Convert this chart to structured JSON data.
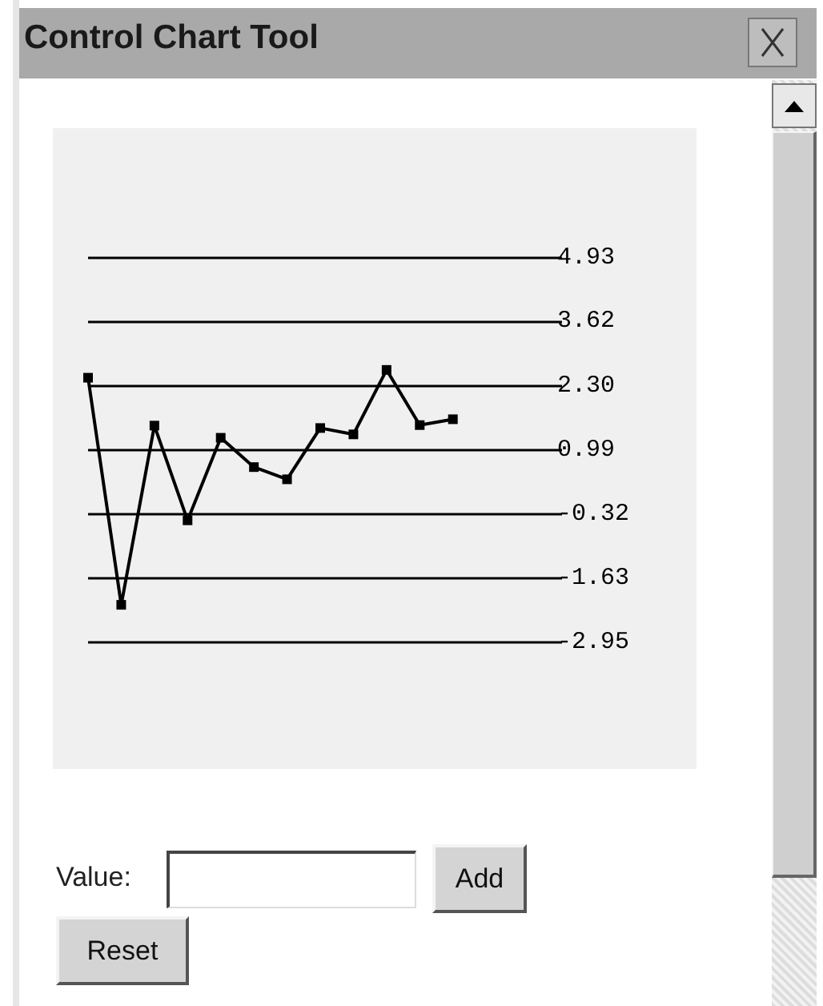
{
  "chart_data": {
    "type": "line",
    "title": "Control Chart Tool",
    "categories": [
      null,
      null,
      null,
      null,
      null,
      null,
      null,
      null,
      null,
      null,
      null,
      null
    ],
    "values": [
      2.47,
      -2.18,
      1.49,
      -0.45,
      1.24,
      0.64,
      0.39,
      1.44,
      1.31,
      2.63,
      1.5,
      1.62
    ],
    "color": "#000000",
    "marker": "square",
    "line_style": "solid",
    "ylim": [
      -5.54,
      7.58
    ],
    "tick_labels": "y",
    "grid": "y",
    "yticks": [
      -2.95,
      -1.63,
      -0.32,
      0.99,
      {
        "value": 2.3,
        "label": "2.30"
      },
      3.62,
      4.93
    ],
    "annotations": [
      "Value:",
      "Add",
      "Reset"
    ]
  }
}
